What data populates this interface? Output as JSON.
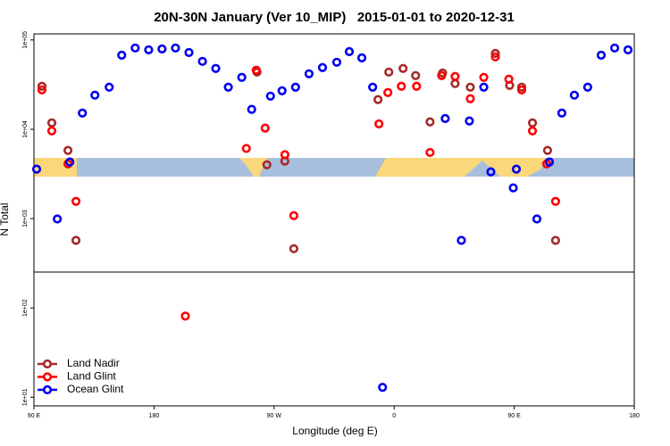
{
  "chart_data": {
    "type": "scatter",
    "title": "20N-30N January (Ver 10_MIP)   2015-01-01 to 2020-12-31",
    "xlabel": "Longitude (deg E)",
    "ylabel": "N Total",
    "log_y": true,
    "legend": "bottom-left",
    "xlim": [
      90,
      540
    ],
    "xticks": [
      {
        "value": 90,
        "label": "90 E"
      },
      {
        "value": 180,
        "label": "180"
      },
      {
        "value": 270,
        "label": "90 W"
      },
      {
        "value": 360,
        "label": "0"
      },
      {
        "value": 450,
        "label": "90 E"
      },
      {
        "value": 540,
        "label": "180"
      }
    ],
    "ylim": [
      8,
      117000
    ],
    "yticks": [
      {
        "value": 10,
        "label": "1e+01"
      },
      {
        "value": 100,
        "label": "1e+02"
      },
      {
        "value": 1000,
        "label": "1e+03"
      },
      {
        "value": 10000,
        "label": "1e+04"
      },
      {
        "value": 100000,
        "label": "1e+05"
      }
    ],
    "series": [
      {
        "name": "Land Nadir",
        "color": "#a52a2a",
        "x": [
          96,
          103.4,
          115.5,
          121.5,
          257.2,
          264.6,
          278.1,
          284.8,
          347.9,
          356,
          366.7,
          376.1,
          386.9,
          396.3,
          405.7,
          417.1,
          435.9,
          446.6,
          455.6,
          463.7,
          475,
          481
        ],
        "values": [
          30300,
          11800,
          5800,
          570,
          43700,
          4000,
          4400,
          460,
          21500,
          43700,
          48000,
          39900,
          12100,
          42700,
          32500,
          29600,
          70800,
          31000,
          29600,
          11800,
          5800,
          570
        ]
      },
      {
        "name": "Land Glint",
        "color": "#ff0000",
        "x": [
          96,
          103.4,
          115.5,
          121.5,
          203.5,
          249.2,
          256.6,
          263.3,
          278.1,
          284.8,
          348.6,
          355.3,
          365.4,
          376.8,
          386.9,
          395.6,
          405.7,
          417.1,
          427.2,
          435.9,
          446,
          455.6,
          463.7,
          474.4,
          481
        ],
        "values": [
          27600,
          9600,
          4100,
          1560,
          81,
          6100,
          45800,
          10300,
          5200,
          1080,
          11500,
          25800,
          30300,
          30300,
          5500,
          39900,
          39000,
          22000,
          38100,
          64600,
          36400,
          27600,
          9600,
          4100,
          1560
        ]
      },
      {
        "name": "Ocean Glint",
        "color": "#0000ee",
        "x": [
          92,
          107.5,
          116.9,
          126.3,
          135.7,
          146.4,
          155.8,
          165.9,
          176,
          186,
          196.1,
          206.2,
          216.3,
          226.3,
          235.7,
          245.8,
          253.2,
          267.3,
          276,
          286.1,
          296.2,
          306.3,
          317,
          326.4,
          335.8,
          343.9,
          351.3,
          398.3,
          410.4,
          416.4,
          427.2,
          432.5,
          449.3,
          451.6,
          467,
          476.4,
          485.7,
          495.1,
          505.1,
          515.2,
          525.3,
          535.3
        ],
        "values": [
          3580,
          990,
          4300,
          15200,
          24100,
          29600,
          67600,
          81300,
          77600,
          79400,
          81300,
          72400,
          57600,
          48000,
          29600,
          38100,
          16700,
          23500,
          27000,
          29600,
          41800,
          49100,
          56300,
          74100,
          63100,
          29600,
          12.9,
          13200,
          570,
          12400,
          29600,
          3340,
          2210,
          3580,
          990,
          4300,
          15200,
          24100,
          29600,
          67600,
          81300,
          77600
        ]
      }
    ]
  }
}
